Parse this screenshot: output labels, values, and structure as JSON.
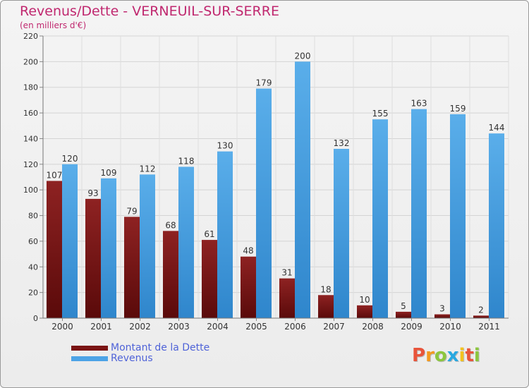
{
  "header": {
    "title": "Revenus/Dette - VERNEUIL-SUR-SERRE",
    "subtitle": "(en milliers d'€)"
  },
  "chart_data": {
    "type": "bar",
    "categories": [
      "2000",
      "2001",
      "2002",
      "2003",
      "2004",
      "2005",
      "2006",
      "2007",
      "2008",
      "2009",
      "2010",
      "2011"
    ],
    "series": [
      {
        "name": "Montant de la Dette",
        "color": "#7a1414",
        "values": [
          107,
          93,
          79,
          68,
          61,
          48,
          31,
          18,
          10,
          5,
          3,
          2
        ]
      },
      {
        "name": "Revenus",
        "color": "#4da3e6",
        "values": [
          120,
          109,
          112,
          118,
          130,
          179,
          200,
          132,
          155,
          163,
          159,
          144
        ]
      }
    ],
    "yticks": [
      0,
      20,
      40,
      60,
      80,
      100,
      120,
      140,
      160,
      180,
      200,
      220
    ],
    "ylim": [
      0,
      220
    ],
    "grid": true,
    "legend_position": "bottom-left",
    "title": "Revenus/Dette - VERNEUIL-SUR-SERRE",
    "ylabel": "(en milliers d'€)"
  },
  "legend": {
    "items": [
      {
        "label": "Montant de la Dette",
        "color": "#7a1414"
      },
      {
        "label": "Revenus",
        "color": "#4da3e6"
      }
    ]
  },
  "brand": {
    "letters": [
      "P",
      "r",
      "o",
      "x",
      "i",
      "t",
      "i"
    ],
    "colors": [
      "#e8543a",
      "#f39a1f",
      "#8cc63f",
      "#29a8e0",
      "#f3c21f",
      "#e8543a",
      "#8cc63f"
    ]
  }
}
